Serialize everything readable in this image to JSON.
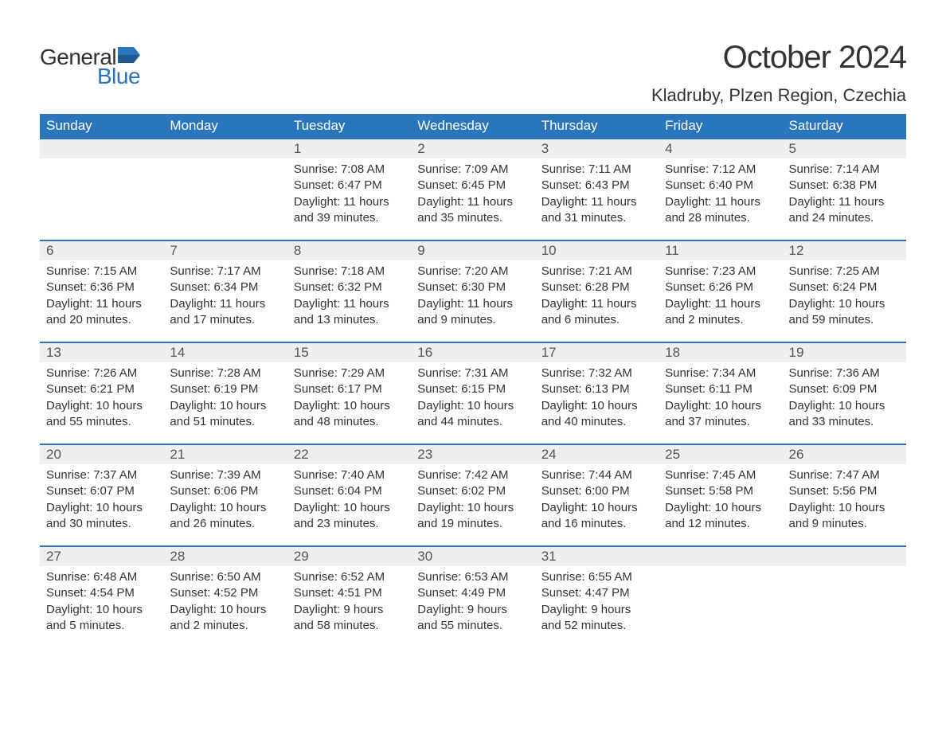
{
  "logo": {
    "text_general": "General",
    "text_blue": "Blue",
    "flag_color": "#2a76bc"
  },
  "title": "October 2024",
  "location": "Kladruby, Plzen Region, Czechia",
  "colors": {
    "header_bg": "#2a76bc",
    "header_text": "#ffffff",
    "daybar_bg": "#eeeeee",
    "daybar_border": "#2a76bc",
    "body_text": "#333333",
    "daynum_text": "#555555",
    "page_bg": "#ffffff"
  },
  "columns": [
    "Sunday",
    "Monday",
    "Tuesday",
    "Wednesday",
    "Thursday",
    "Friday",
    "Saturday"
  ],
  "weeks": [
    [
      {
        "blank": true
      },
      {
        "blank": true
      },
      {
        "day": "1",
        "sunrise": "Sunrise: 7:08 AM",
        "sunset": "Sunset: 6:47 PM",
        "dl1": "Daylight: 11 hours",
        "dl2": "and 39 minutes."
      },
      {
        "day": "2",
        "sunrise": "Sunrise: 7:09 AM",
        "sunset": "Sunset: 6:45 PM",
        "dl1": "Daylight: 11 hours",
        "dl2": "and 35 minutes."
      },
      {
        "day": "3",
        "sunrise": "Sunrise: 7:11 AM",
        "sunset": "Sunset: 6:43 PM",
        "dl1": "Daylight: 11 hours",
        "dl2": "and 31 minutes."
      },
      {
        "day": "4",
        "sunrise": "Sunrise: 7:12 AM",
        "sunset": "Sunset: 6:40 PM",
        "dl1": "Daylight: 11 hours",
        "dl2": "and 28 minutes."
      },
      {
        "day": "5",
        "sunrise": "Sunrise: 7:14 AM",
        "sunset": "Sunset: 6:38 PM",
        "dl1": "Daylight: 11 hours",
        "dl2": "and 24 minutes."
      }
    ],
    [
      {
        "day": "6",
        "sunrise": "Sunrise: 7:15 AM",
        "sunset": "Sunset: 6:36 PM",
        "dl1": "Daylight: 11 hours",
        "dl2": "and 20 minutes."
      },
      {
        "day": "7",
        "sunrise": "Sunrise: 7:17 AM",
        "sunset": "Sunset: 6:34 PM",
        "dl1": "Daylight: 11 hours",
        "dl2": "and 17 minutes."
      },
      {
        "day": "8",
        "sunrise": "Sunrise: 7:18 AM",
        "sunset": "Sunset: 6:32 PM",
        "dl1": "Daylight: 11 hours",
        "dl2": "and 13 minutes."
      },
      {
        "day": "9",
        "sunrise": "Sunrise: 7:20 AM",
        "sunset": "Sunset: 6:30 PM",
        "dl1": "Daylight: 11 hours",
        "dl2": "and 9 minutes."
      },
      {
        "day": "10",
        "sunrise": "Sunrise: 7:21 AM",
        "sunset": "Sunset: 6:28 PM",
        "dl1": "Daylight: 11 hours",
        "dl2": "and 6 minutes."
      },
      {
        "day": "11",
        "sunrise": "Sunrise: 7:23 AM",
        "sunset": "Sunset: 6:26 PM",
        "dl1": "Daylight: 11 hours",
        "dl2": "and 2 minutes."
      },
      {
        "day": "12",
        "sunrise": "Sunrise: 7:25 AM",
        "sunset": "Sunset: 6:24 PM",
        "dl1": "Daylight: 10 hours",
        "dl2": "and 59 minutes."
      }
    ],
    [
      {
        "day": "13",
        "sunrise": "Sunrise: 7:26 AM",
        "sunset": "Sunset: 6:21 PM",
        "dl1": "Daylight: 10 hours",
        "dl2": "and 55 minutes."
      },
      {
        "day": "14",
        "sunrise": "Sunrise: 7:28 AM",
        "sunset": "Sunset: 6:19 PM",
        "dl1": "Daylight: 10 hours",
        "dl2": "and 51 minutes."
      },
      {
        "day": "15",
        "sunrise": "Sunrise: 7:29 AM",
        "sunset": "Sunset: 6:17 PM",
        "dl1": "Daylight: 10 hours",
        "dl2": "and 48 minutes."
      },
      {
        "day": "16",
        "sunrise": "Sunrise: 7:31 AM",
        "sunset": "Sunset: 6:15 PM",
        "dl1": "Daylight: 10 hours",
        "dl2": "and 44 minutes."
      },
      {
        "day": "17",
        "sunrise": "Sunrise: 7:32 AM",
        "sunset": "Sunset: 6:13 PM",
        "dl1": "Daylight: 10 hours",
        "dl2": "and 40 minutes."
      },
      {
        "day": "18",
        "sunrise": "Sunrise: 7:34 AM",
        "sunset": "Sunset: 6:11 PM",
        "dl1": "Daylight: 10 hours",
        "dl2": "and 37 minutes."
      },
      {
        "day": "19",
        "sunrise": "Sunrise: 7:36 AM",
        "sunset": "Sunset: 6:09 PM",
        "dl1": "Daylight: 10 hours",
        "dl2": "and 33 minutes."
      }
    ],
    [
      {
        "day": "20",
        "sunrise": "Sunrise: 7:37 AM",
        "sunset": "Sunset: 6:07 PM",
        "dl1": "Daylight: 10 hours",
        "dl2": "and 30 minutes."
      },
      {
        "day": "21",
        "sunrise": "Sunrise: 7:39 AM",
        "sunset": "Sunset: 6:06 PM",
        "dl1": "Daylight: 10 hours",
        "dl2": "and 26 minutes."
      },
      {
        "day": "22",
        "sunrise": "Sunrise: 7:40 AM",
        "sunset": "Sunset: 6:04 PM",
        "dl1": "Daylight: 10 hours",
        "dl2": "and 23 minutes."
      },
      {
        "day": "23",
        "sunrise": "Sunrise: 7:42 AM",
        "sunset": "Sunset: 6:02 PM",
        "dl1": "Daylight: 10 hours",
        "dl2": "and 19 minutes."
      },
      {
        "day": "24",
        "sunrise": "Sunrise: 7:44 AM",
        "sunset": "Sunset: 6:00 PM",
        "dl1": "Daylight: 10 hours",
        "dl2": "and 16 minutes."
      },
      {
        "day": "25",
        "sunrise": "Sunrise: 7:45 AM",
        "sunset": "Sunset: 5:58 PM",
        "dl1": "Daylight: 10 hours",
        "dl2": "and 12 minutes."
      },
      {
        "day": "26",
        "sunrise": "Sunrise: 7:47 AM",
        "sunset": "Sunset: 5:56 PM",
        "dl1": "Daylight: 10 hours",
        "dl2": "and 9 minutes."
      }
    ],
    [
      {
        "day": "27",
        "sunrise": "Sunrise: 6:48 AM",
        "sunset": "Sunset: 4:54 PM",
        "dl1": "Daylight: 10 hours",
        "dl2": "and 5 minutes."
      },
      {
        "day": "28",
        "sunrise": "Sunrise: 6:50 AM",
        "sunset": "Sunset: 4:52 PM",
        "dl1": "Daylight: 10 hours",
        "dl2": "and 2 minutes."
      },
      {
        "day": "29",
        "sunrise": "Sunrise: 6:52 AM",
        "sunset": "Sunset: 4:51 PM",
        "dl1": "Daylight: 9 hours",
        "dl2": "and 58 minutes."
      },
      {
        "day": "30",
        "sunrise": "Sunrise: 6:53 AM",
        "sunset": "Sunset: 4:49 PM",
        "dl1": "Daylight: 9 hours",
        "dl2": "and 55 minutes."
      },
      {
        "day": "31",
        "sunrise": "Sunrise: 6:55 AM",
        "sunset": "Sunset: 4:47 PM",
        "dl1": "Daylight: 9 hours",
        "dl2": "and 52 minutes."
      },
      {
        "blank": true
      },
      {
        "blank": true
      }
    ]
  ]
}
